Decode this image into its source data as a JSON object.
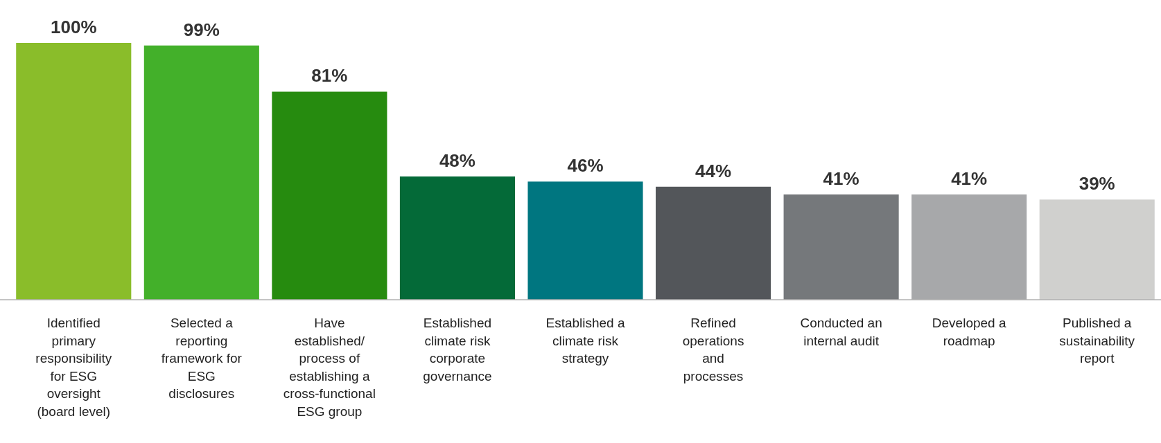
{
  "chart_data": {
    "type": "bar",
    "categories": [
      "Identified primary responsibility for ESG oversight (board level)",
      "Selected a reporting framework for ESG disclosures",
      "Have established/ process of establishing a cross-functional ESG group",
      "Established climate risk corporate governance",
      "Established a climate risk strategy",
      "Refined operations and processes",
      "Conducted an internal audit",
      "Developed a roadmap",
      "Published a sustainability report"
    ],
    "values": [
      100,
      99,
      81,
      48,
      46,
      44,
      41,
      41,
      39
    ],
    "value_labels": [
      "100%",
      "99%",
      "81%",
      "48%",
      "46%",
      "44%",
      "41%",
      "41%",
      "39%"
    ],
    "colors": [
      "#8abd2a",
      "#43b02a",
      "#268b0f",
      "#046a38",
      "#007680",
      "#53565a",
      "#75787b",
      "#a7a8aa",
      "#d0d0ce"
    ]
  }
}
